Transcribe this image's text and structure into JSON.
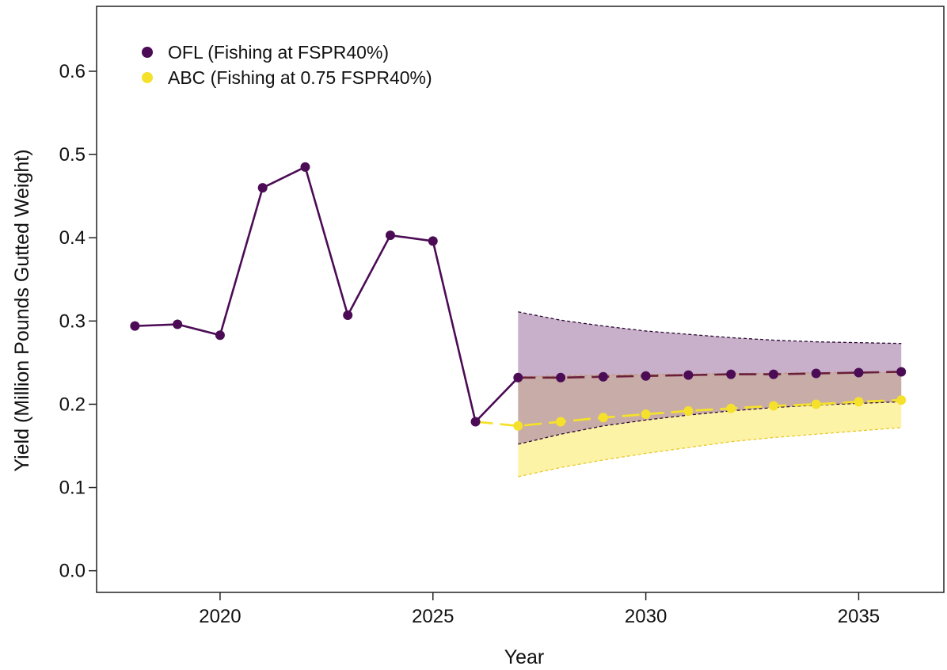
{
  "chart_data": {
    "type": "line",
    "title": "",
    "xlabel": "Year",
    "ylabel": "Yield (Million Pounds Gutted Weight)",
    "xlim": [
      2017.1,
      2037.0
    ],
    "ylim": [
      -0.026,
      0.678
    ],
    "x_ticks": [
      2020,
      2025,
      2030,
      2035
    ],
    "y_ticks": [
      0.0,
      0.1,
      0.2,
      0.3,
      0.4,
      0.5,
      0.6
    ],
    "y_tick_labels": [
      "0.0",
      "0.1",
      "0.2",
      "0.3",
      "0.4",
      "0.5",
      "0.6"
    ],
    "grid": false,
    "legend_position": "top-left",
    "series": [
      {
        "name": "OFL (Fishing at FSPR40%)",
        "color": "#4B0C55",
        "x": [
          2018,
          2019,
          2020,
          2021,
          2022,
          2023,
          2024,
          2025,
          2026,
          2027,
          2028,
          2029,
          2030,
          2031,
          2032,
          2033,
          2034,
          2035,
          2036
        ],
        "values": [
          0.294,
          0.296,
          0.283,
          0.46,
          0.485,
          0.307,
          0.403,
          0.396,
          0.179,
          0.232,
          0.232,
          0.233,
          0.234,
          0.235,
          0.236,
          0.236,
          0.237,
          0.238,
          0.239
        ],
        "band": {
          "x": [
            2027,
            2028,
            2029,
            2030,
            2031,
            2032,
            2033,
            2034,
            2035,
            2036
          ],
          "upper": [
            0.311,
            0.301,
            0.294,
            0.288,
            0.284,
            0.28,
            0.277,
            0.275,
            0.274,
            0.273
          ],
          "lower": [
            0.152,
            0.164,
            0.174,
            0.181,
            0.187,
            0.192,
            0.196,
            0.199,
            0.201,
            0.203
          ],
          "fill": "#A880AA"
        }
      },
      {
        "name": "ABC (Fishing at 0.75 FSPR40%)",
        "color": "#F5E12B",
        "x": [
          2026,
          2027,
          2028,
          2029,
          2030,
          2031,
          2032,
          2033,
          2034,
          2035,
          2036
        ],
        "values": [
          0.179,
          0.174,
          0.179,
          0.184,
          0.188,
          0.192,
          0.195,
          0.198,
          0.2,
          0.203,
          0.205
        ],
        "band": {
          "x": [
            2027,
            2028,
            2029,
            2030,
            2031,
            2032,
            2033,
            2034,
            2035,
            2036
          ],
          "upper": [
            0.233,
            0.234,
            0.235,
            0.236,
            0.236,
            0.237,
            0.237,
            0.238,
            0.238,
            0.238
          ],
          "lower": [
            0.113,
            0.124,
            0.133,
            0.141,
            0.148,
            0.155,
            0.16,
            0.164,
            0.168,
            0.172
          ],
          "fill": "#FDF3A6"
        }
      }
    ]
  }
}
